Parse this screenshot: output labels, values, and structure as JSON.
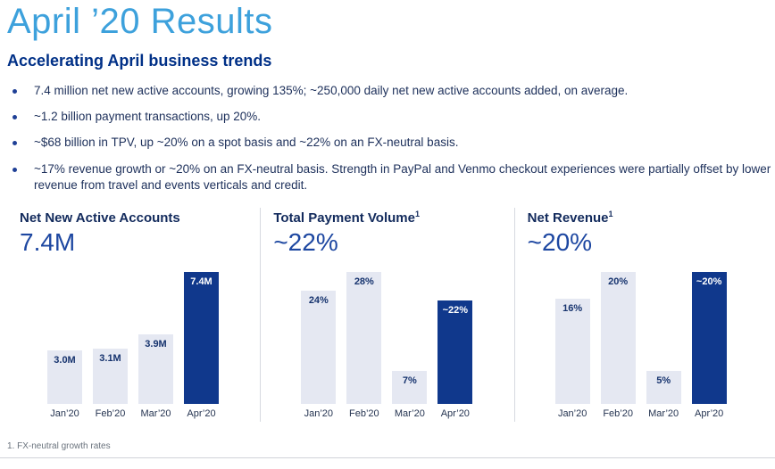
{
  "page": {
    "title": "April ’20 Results",
    "subtitle": "Accelerating April business trends",
    "bullets": [
      "7.4 million net new active accounts, growing 135%; ~250,000 daily net new active accounts added, on average.",
      "~1.2 billion payment transactions, up 20%.",
      "~$68 billion in TPV, up ~20% on a spot basis and ~22% on an FX-neutral basis.",
      "~17% revenue growth or ~20% on an FX-neutral basis. Strength in PayPal and Venmo checkout experiences were partially offset by lower revenue from travel and events verticals and credit."
    ],
    "footnote": "1. FX-neutral growth rates"
  },
  "colors": {
    "title_light_blue": "#3da1dc",
    "heading_navy": "#003087",
    "body_text_navy": "#1c2f5a",
    "headline_value_blue": "#1d47a1",
    "bar_light": "#e5e8f2",
    "bar_highlight_dark_blue": "#10388c",
    "divider_gray": "#d6d9e0",
    "footnote_gray": "#6a737d"
  },
  "chart_data": [
    {
      "type": "bar",
      "title": "Net New Active Accounts",
      "superscript": "",
      "headline_value": "7.4M",
      "categories": [
        "Jan’20",
        "Feb’20",
        "Mar’20",
        "Apr’20"
      ],
      "values": [
        3.0,
        3.1,
        3.9,
        7.4
      ],
      "value_labels": [
        "3.0M",
        "3.1M",
        "3.9M",
        "7.4M"
      ],
      "highlight_index": 3,
      "ylim": [
        0,
        7.4
      ],
      "grid": false,
      "legend": false
    },
    {
      "type": "bar",
      "title": "Total Payment Volume",
      "superscript": "1",
      "headline_value": "~22%",
      "categories": [
        "Jan’20",
        "Feb’20",
        "Mar’20",
        "Apr’20"
      ],
      "values": [
        24,
        28,
        7,
        22
      ],
      "value_labels": [
        "24%",
        "28%",
        "7%",
        "~22%"
      ],
      "highlight_index": 3,
      "ylim": [
        0,
        28
      ],
      "grid": false,
      "legend": false
    },
    {
      "type": "bar",
      "title": "Net Revenue",
      "superscript": "1",
      "headline_value": "~20%",
      "categories": [
        "Jan’20",
        "Feb’20",
        "Mar’20",
        "Apr’20"
      ],
      "values": [
        16,
        20,
        5,
        20
      ],
      "value_labels": [
        "16%",
        "20%",
        "5%",
        "~20%"
      ],
      "highlight_index": 3,
      "ylim": [
        0,
        20
      ],
      "grid": false,
      "legend": false
    }
  ]
}
